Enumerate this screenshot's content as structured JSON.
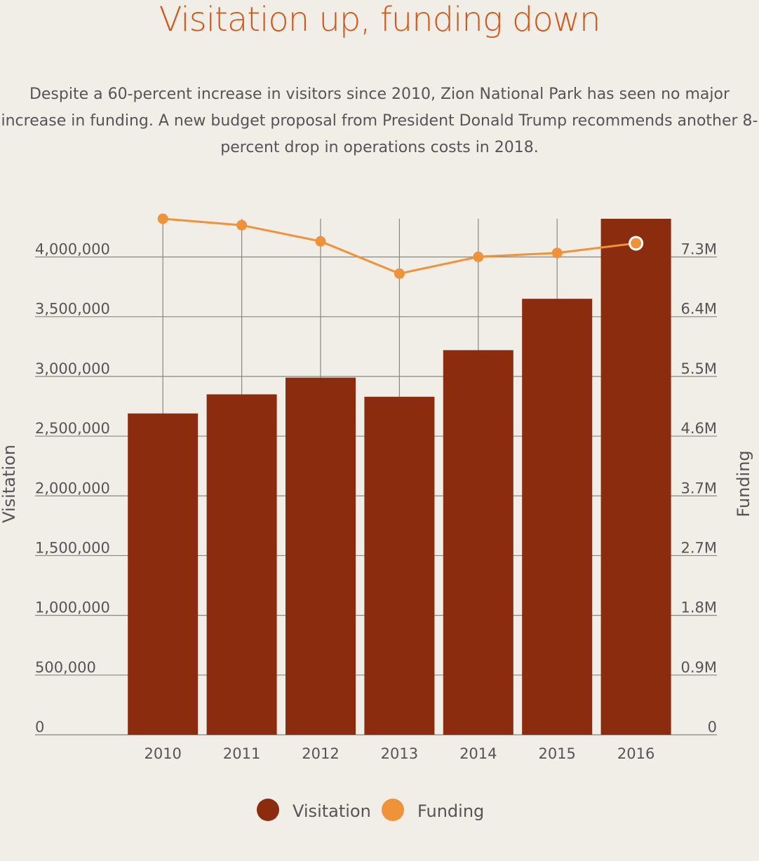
{
  "title": "Visitation up, funding down",
  "subtitle": "Despite a 60-percent increase in visitors since 2010, Zion National Park has seen no major increase in funding. A new budget proposal from President Donald Trump recommends another 8-percent drop in operations costs in 2018.",
  "colors": {
    "visitation": "#8b2c0e",
    "funding": "#f0923a",
    "grid": "#8a8682"
  },
  "chart_data": {
    "type": "bar",
    "categories": [
      "2010",
      "2011",
      "2012",
      "2013",
      "2014",
      "2015",
      "2016"
    ],
    "series": [
      {
        "name": "Visitation",
        "axis": "left",
        "type": "bar",
        "values": [
          2690000,
          2850000,
          2990000,
          2830000,
          3220000,
          3650000,
          4320000
        ]
      },
      {
        "name": "Funding",
        "axis": "right",
        "type": "line",
        "values": [
          8000000,
          7900000,
          7650000,
          7150000,
          7410000,
          7470000,
          7620000
        ]
      }
    ],
    "ylabel": "Visitation",
    "y2label": "Funding",
    "ylim": [
      0,
      4320000
    ],
    "y2lim": [
      0,
      8000000
    ],
    "yticks": [
      {
        "value": 0,
        "label": "0"
      },
      {
        "value": 500000,
        "label": "500,000"
      },
      {
        "value": 1000000,
        "label": "1,000,000"
      },
      {
        "value": 1500000,
        "label": "1,500,000"
      },
      {
        "value": 2000000,
        "label": "2,000,000"
      },
      {
        "value": 2500000,
        "label": "2,500,000"
      },
      {
        "value": 3000000,
        "label": "3,000,000"
      },
      {
        "value": 3500000,
        "label": "3,500,000"
      },
      {
        "value": 4000000,
        "label": "4,000,000"
      }
    ],
    "y2ticks": [
      "0",
      "0.9M",
      "1.8M",
      "2.7M",
      "3.7M",
      "4.6M",
      "5.5M",
      "6.4M",
      "7.3M"
    ],
    "highlighted_index": 6,
    "legend": [
      "Visitation",
      "Funding"
    ],
    "legend_position": "bottom",
    "grid": true
  }
}
